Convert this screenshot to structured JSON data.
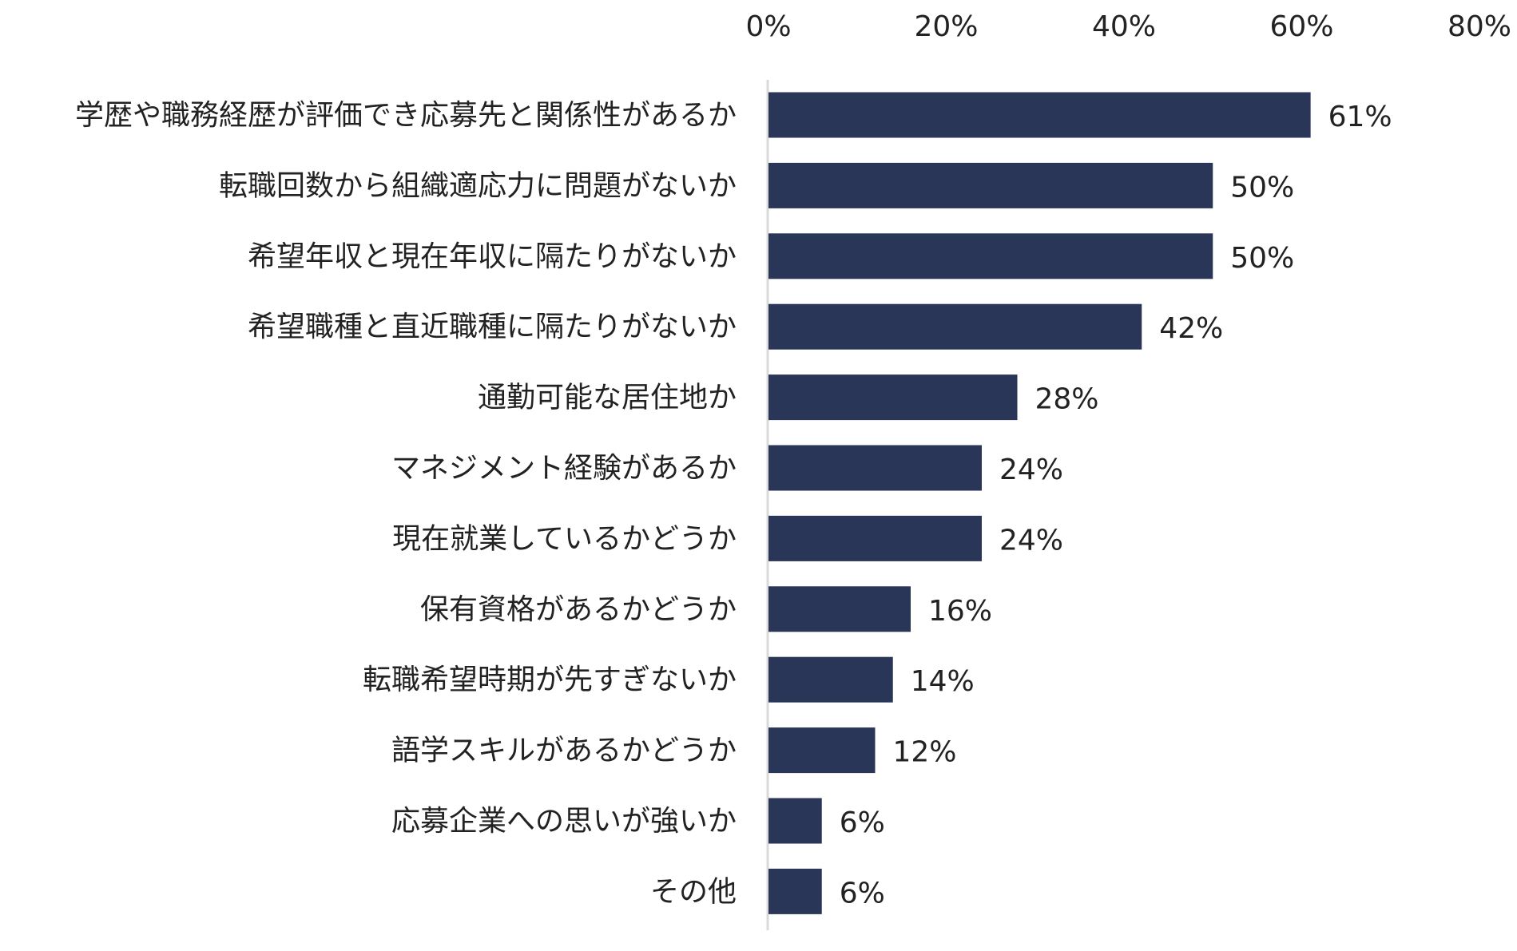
{
  "chart_data": {
    "type": "bar",
    "orientation": "horizontal",
    "categories": [
      "学歴や職務経歴が評価でき応募先と関係性があるか",
      "転職回数から組織適応力に問題がないか",
      "希望年収と現在年収に隔たりがないか",
      "希望職種と直近職種に隔たりがないか",
      "通勤可能な居住地か",
      "マネジメント経験があるか",
      "現在就業しているかどうか",
      "保有資格があるかどうか",
      "転職希望時期が先すぎないか",
      "語学スキルがあるかどうか",
      "応募企業への思いが強いか",
      "その他"
    ],
    "values": [
      61,
      50,
      50,
      42,
      28,
      24,
      24,
      16,
      14,
      12,
      6,
      6
    ],
    "value_labels": [
      "61%",
      "50%",
      "50%",
      "42%",
      "28%",
      "24%",
      "24%",
      "16%",
      "14%",
      "12%",
      "6%",
      "6%"
    ],
    "xlim": [
      0,
      80
    ],
    "x_ticks": [
      0,
      20,
      40,
      60,
      80
    ],
    "x_tick_labels": [
      "0%",
      "20%",
      "40%",
      "60%",
      "80%"
    ],
    "x_axis_position": "top",
    "title": "",
    "xlabel": "",
    "ylabel": "",
    "grid": false,
    "legend": "none",
    "colors": {
      "bar": "#2a3658",
      "axis": "#d9d9d9",
      "text": "#222222"
    }
  }
}
